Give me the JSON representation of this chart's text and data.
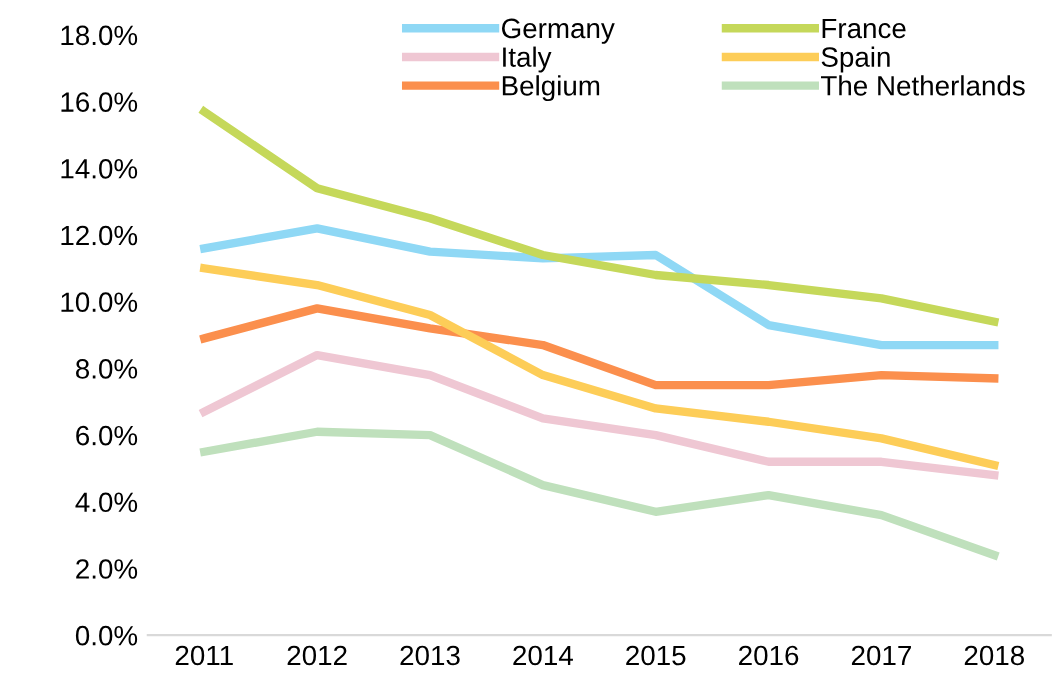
{
  "chart_data": {
    "type": "line",
    "categories": [
      "2011",
      "2012",
      "2013",
      "2014",
      "2015",
      "2016",
      "2017",
      "2018"
    ],
    "series": [
      {
        "name": "Germany",
        "color": "#8fd8f5",
        "values": [
          11.6,
          12.2,
          11.5,
          11.3,
          11.4,
          9.3,
          8.7,
          8.7
        ]
      },
      {
        "name": "Italy",
        "color": "#efc7d3",
        "values": [
          6.7,
          8.4,
          7.8,
          6.5,
          6.0,
          5.2,
          5.2,
          4.8
        ]
      },
      {
        "name": "Belgium",
        "color": "#fb8f4d",
        "values": [
          8.9,
          9.8,
          9.2,
          8.7,
          7.5,
          7.5,
          7.8,
          7.7
        ]
      },
      {
        "name": "France",
        "color": "#c5d85a",
        "values": [
          15.7,
          13.4,
          12.5,
          11.4,
          10.8,
          10.5,
          10.1,
          9.4
        ]
      },
      {
        "name": "Spain",
        "color": "#fdcd58",
        "values": [
          11.0,
          10.5,
          9.6,
          7.8,
          6.8,
          6.4,
          5.9,
          5.1
        ]
      },
      {
        "name": "The Netherlands",
        "color": "#bfe0bc",
        "values": [
          5.5,
          6.1,
          6.0,
          4.5,
          3.7,
          4.2,
          3.6,
          2.4
        ]
      }
    ],
    "ylim": [
      0,
      18
    ],
    "yticks": [
      {
        "value": 0,
        "label": "0.0%"
      },
      {
        "value": 2,
        "label": "2.0%"
      },
      {
        "value": 4,
        "label": "4.0%"
      },
      {
        "value": 6,
        "label": "6.0%"
      },
      {
        "value": 8,
        "label": "8.0%"
      },
      {
        "value": 10,
        "label": "10.0%"
      },
      {
        "value": 12,
        "label": "12.0%"
      },
      {
        "value": 14,
        "label": "14.0%"
      },
      {
        "value": 16,
        "label": "16.0%"
      },
      {
        "value": 18,
        "label": "18.0%"
      }
    ],
    "grid": false,
    "legend": "top right",
    "marker": "none",
    "line_style": "solid"
  }
}
